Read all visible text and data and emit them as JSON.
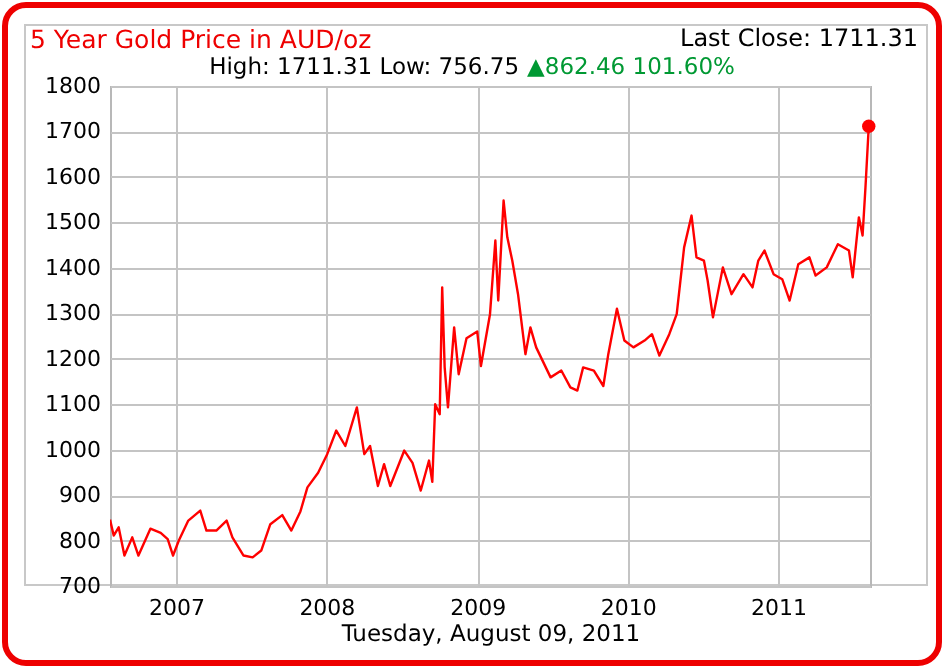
{
  "chart_data": {
    "type": "line",
    "title": "5 Year Gold Price in AUD/oz",
    "subtitle": "High: 1711.31 Low: 756.75",
    "xlabel": "Tuesday, August 09, 2011",
    "annotations": [
      "▲862.46 101.60%",
      "Last Close: 1711.31"
    ],
    "x": [
      "2006-07-25",
      "2006-08-03",
      "2006-08-15",
      "2006-08-29",
      "2006-09-17",
      "2006-10-02",
      "2006-10-31",
      "2006-11-25",
      "2006-12-12",
      "2006-12-25",
      "2007-01-08",
      "2007-01-31",
      "2007-03-01",
      "2007-03-16",
      "2007-04-09",
      "2007-05-04",
      "2007-05-18",
      "2007-06-14",
      "2007-07-06",
      "2007-07-27",
      "2007-08-18",
      "2007-09-16",
      "2007-10-08",
      "2007-10-30",
      "2007-11-16",
      "2007-12-12",
      "2008-01-03",
      "2008-01-25",
      "2008-02-16",
      "2008-03-15",
      "2008-04-02",
      "2008-04-16",
      "2008-05-05",
      "2008-05-20",
      "2008-06-04",
      "2008-07-08",
      "2008-07-28",
      "2008-08-17",
      "2008-09-06",
      "2008-09-14",
      "2008-09-21",
      "2008-10-02",
      "2008-10-08",
      "2008-10-14",
      "2008-10-22",
      "2008-11-06",
      "2008-11-17",
      "2008-12-06",
      "2009-01-01",
      "2009-01-10",
      "2009-02-01",
      "2009-02-14",
      "2009-02-21",
      "2009-03-06",
      "2009-03-15",
      "2009-03-27",
      "2009-04-10",
      "2009-04-28",
      "2009-05-10",
      "2009-05-24",
      "2009-06-28",
      "2009-07-24",
      "2009-08-15",
      "2009-09-01",
      "2009-09-15",
      "2009-10-11",
      "2009-11-03",
      "2009-11-15",
      "2009-12-06",
      "2009-12-24",
      "2010-01-15",
      "2010-02-11",
      "2010-03-01",
      "2010-03-19",
      "2010-04-12",
      "2010-04-30",
      "2010-05-18",
      "2010-06-05",
      "2010-06-17",
      "2010-07-05",
      "2010-07-14",
      "2010-07-27",
      "2010-08-20",
      "2010-09-10",
      "2010-10-09",
      "2010-10-31",
      "2010-11-14",
      "2010-11-29",
      "2010-12-21",
      "2011-01-11",
      "2011-01-29",
      "2011-02-19",
      "2011-03-18",
      "2011-04-02",
      "2011-04-29",
      "2011-05-26",
      "2011-06-22",
      "2011-07-01",
      "2011-07-16",
      "2011-07-25",
      "2011-08-01",
      "2011-08-09"
    ],
    "series": [
      {
        "color": "#ff0000",
        "values": [
          846,
          811,
          829,
          767,
          807,
          767,
          826,
          817,
          803,
          767,
          800,
          844,
          866,
          822,
          822,
          844,
          807,
          767,
          763,
          778,
          836,
          856,
          822,
          864,
          917,
          949,
          990,
          1042,
          1008,
          1093,
          990,
          1008,
          920,
          968,
          920,
          998,
          971,
          910,
          976,
          929,
          1100,
          1078,
          1357,
          1181,
          1093,
          1269,
          1166,
          1245,
          1260,
          1184,
          1298,
          1460,
          1328,
          1548,
          1467,
          1416,
          1342,
          1210,
          1269,
          1225,
          1159,
          1174,
          1137,
          1130,
          1181,
          1174,
          1140,
          1210,
          1310,
          1240,
          1225,
          1240,
          1254,
          1207,
          1254,
          1298,
          1445,
          1515,
          1423,
          1416,
          1372,
          1291,
          1401,
          1342,
          1386,
          1357,
          1416,
          1438,
          1386,
          1375,
          1328,
          1408,
          1423,
          1383,
          1401,
          1452,
          1438,
          1379,
          1511,
          1471,
          1577,
          1711.31
        ]
      }
    ],
    "xlim": [
      "2006-07-25",
      "2011-08-12"
    ],
    "xticks": [
      {
        "value": "2007-01-01",
        "label": "2007"
      },
      {
        "value": "2008-01-01",
        "label": "2008"
      },
      {
        "value": "2009-01-01",
        "label": "2009"
      },
      {
        "value": "2010-01-01",
        "label": "2010"
      },
      {
        "value": "2011-01-01",
        "label": "2011"
      }
    ],
    "ylim": [
      700,
      1800
    ],
    "yticks": [
      700,
      800,
      900,
      1000,
      1100,
      1200,
      1300,
      1400,
      1500,
      1600,
      1700,
      1800
    ],
    "grid": true
  }
}
